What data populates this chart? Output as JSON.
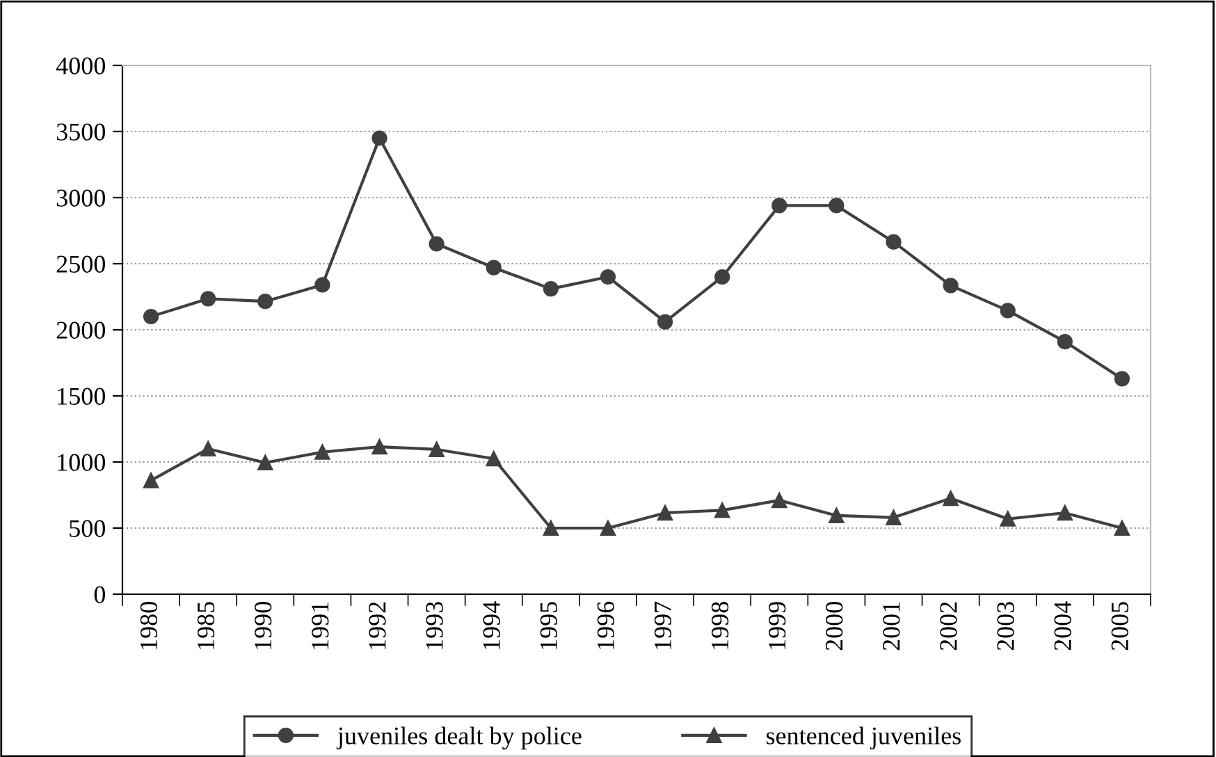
{
  "chart_data": {
    "type": "line",
    "categories": [
      "1980",
      "1985",
      "1990",
      "1991",
      "1992",
      "1993",
      "1994",
      "1995",
      "1996",
      "1997",
      "1998",
      "1999",
      "2000",
      "2001",
      "2002",
      "2003",
      "2004",
      "2005"
    ],
    "series": [
      {
        "name": "juveniles dealt by police",
        "color": "#404040",
        "marker": "circle",
        "values": [
          2100,
          2235,
          2215,
          2340,
          3450,
          2650,
          2470,
          2310,
          2400,
          2060,
          2400,
          2940,
          2940,
          2665,
          2335,
          2145,
          1910,
          1630
        ]
      },
      {
        "name": "sentenced juveniles",
        "color": "#404040",
        "marker": "triangle",
        "values": [
          860,
          1100,
          995,
          1075,
          1115,
          1095,
          1025,
          500,
          500,
          615,
          635,
          710,
          595,
          580,
          725,
          570,
          615,
          500
        ]
      }
    ],
    "ylim": [
      0,
      4000
    ],
    "yticks": [
      0,
      500,
      1000,
      1500,
      2000,
      2500,
      3000,
      3500,
      4000
    ],
    "grid": "y",
    "legend": "bottom",
    "line_style": "solid"
  }
}
